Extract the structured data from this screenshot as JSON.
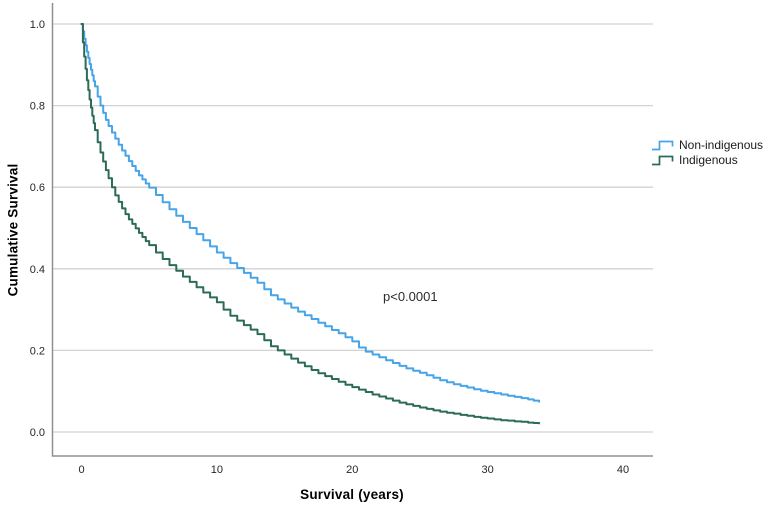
{
  "chart": {
    "y_axis_title": "Cumulative Survival",
    "x_axis_title": "Survival (years)",
    "annotation_text": "p<0.0001"
  },
  "chart_data": {
    "type": "line",
    "subtype": "kaplan-meier-step",
    "title": "",
    "xlabel": "Survival (years)",
    "ylabel": "Cumulative Survival",
    "xlim": [
      -2.2,
      42.2
    ],
    "ylim": [
      -0.06,
      1.05
    ],
    "x_ticks": [
      "0",
      "10",
      "20",
      "30",
      "40"
    ],
    "y_ticks": [
      "0.0",
      "0.2",
      "0.4",
      "0.6",
      "0.8",
      "1.0"
    ],
    "grid": "horizontal-only",
    "grid_color": "#d2d2d2",
    "spine_color": "#909090",
    "tick_label_color": "#262626",
    "legend_position": "right",
    "annotation": {
      "text": "p<0.0001",
      "x": 24.8,
      "y": 0.33
    },
    "series": [
      {
        "name": "Non-indigenous",
        "color": "#46a4e9",
        "points": [
          [
            0,
            1.0
          ],
          [
            0.1,
            0.982
          ],
          [
            0.2,
            0.964
          ],
          [
            0.3,
            0.948
          ],
          [
            0.4,
            0.932
          ],
          [
            0.5,
            0.917
          ],
          [
            0.6,
            0.902
          ],
          [
            0.7,
            0.888
          ],
          [
            0.8,
            0.874
          ],
          [
            0.9,
            0.86
          ],
          [
            1.0,
            0.847
          ],
          [
            1.2,
            0.822
          ],
          [
            1.4,
            0.8
          ],
          [
            1.6,
            0.782
          ],
          [
            1.8,
            0.765
          ],
          [
            2.0,
            0.75
          ],
          [
            2.25,
            0.734
          ],
          [
            2.5,
            0.719
          ],
          [
            2.75,
            0.704
          ],
          [
            3.0,
            0.69
          ],
          [
            3.25,
            0.677
          ],
          [
            3.5,
            0.664
          ],
          [
            3.75,
            0.652
          ],
          [
            4.0,
            0.64
          ],
          [
            4.25,
            0.629
          ],
          [
            4.5,
            0.619
          ],
          [
            4.75,
            0.609
          ],
          [
            5.0,
            0.599
          ],
          [
            5.5,
            0.581
          ],
          [
            6.0,
            0.563
          ],
          [
            6.5,
            0.546
          ],
          [
            7.0,
            0.53
          ],
          [
            7.5,
            0.515
          ],
          [
            8.0,
            0.5
          ],
          [
            8.5,
            0.485
          ],
          [
            9.0,
            0.47
          ],
          [
            9.5,
            0.455
          ],
          [
            10.0,
            0.44
          ],
          [
            10.5,
            0.427
          ],
          [
            11.0,
            0.414
          ],
          [
            11.5,
            0.402
          ],
          [
            12.0,
            0.39
          ],
          [
            12.5,
            0.378
          ],
          [
            13.0,
            0.366
          ],
          [
            13.5,
            0.35
          ],
          [
            14.0,
            0.335
          ],
          [
            14.5,
            0.325
          ],
          [
            15.0,
            0.315
          ],
          [
            15.5,
            0.305
          ],
          [
            16.0,
            0.295
          ],
          [
            16.5,
            0.286
          ],
          [
            17.0,
            0.277
          ],
          [
            17.5,
            0.268
          ],
          [
            18.0,
            0.259
          ],
          [
            18.5,
            0.25
          ],
          [
            19.0,
            0.242
          ],
          [
            19.5,
            0.232
          ],
          [
            20.0,
            0.222
          ],
          [
            20.5,
            0.207
          ],
          [
            21.0,
            0.197
          ],
          [
            21.5,
            0.19
          ],
          [
            22.0,
            0.183
          ],
          [
            22.5,
            0.176
          ],
          [
            23.0,
            0.169
          ],
          [
            23.5,
            0.162
          ],
          [
            24.0,
            0.156
          ],
          [
            24.5,
            0.15
          ],
          [
            25.0,
            0.145
          ],
          [
            25.5,
            0.139
          ],
          [
            26.0,
            0.133
          ],
          [
            26.5,
            0.127
          ],
          [
            27.0,
            0.122
          ],
          [
            27.5,
            0.117
          ],
          [
            28.0,
            0.113
          ],
          [
            28.5,
            0.109
          ],
          [
            29.0,
            0.105
          ],
          [
            29.5,
            0.101
          ],
          [
            30.0,
            0.098
          ],
          [
            30.5,
            0.095
          ],
          [
            31.0,
            0.092
          ],
          [
            31.5,
            0.089
          ],
          [
            32.0,
            0.086
          ],
          [
            32.5,
            0.083
          ],
          [
            33.0,
            0.08
          ],
          [
            33.4,
            0.077
          ],
          [
            33.8,
            0.074
          ]
        ]
      },
      {
        "name": "Indigenous",
        "color": "#2c6b5a",
        "points": [
          [
            0,
            1.0
          ],
          [
            0.1,
            0.955
          ],
          [
            0.2,
            0.92
          ],
          [
            0.3,
            0.89
          ],
          [
            0.4,
            0.862
          ],
          [
            0.5,
            0.838
          ],
          [
            0.6,
            0.815
          ],
          [
            0.7,
            0.795
          ],
          [
            0.8,
            0.775
          ],
          [
            0.9,
            0.757
          ],
          [
            1.0,
            0.74
          ],
          [
            1.2,
            0.71
          ],
          [
            1.4,
            0.685
          ],
          [
            1.6,
            0.663
          ],
          [
            1.8,
            0.642
          ],
          [
            2.0,
            0.622
          ],
          [
            2.25,
            0.6
          ],
          [
            2.5,
            0.58
          ],
          [
            2.75,
            0.564
          ],
          [
            3.0,
            0.548
          ],
          [
            3.25,
            0.534
          ],
          [
            3.5,
            0.521
          ],
          [
            3.75,
            0.51
          ],
          [
            4.0,
            0.499
          ],
          [
            4.25,
            0.488
          ],
          [
            4.5,
            0.478
          ],
          [
            4.75,
            0.468
          ],
          [
            5.0,
            0.458
          ],
          [
            5.5,
            0.44
          ],
          [
            6.0,
            0.424
          ],
          [
            6.5,
            0.409
          ],
          [
            7.0,
            0.395
          ],
          [
            7.5,
            0.381
          ],
          [
            8.0,
            0.368
          ],
          [
            8.5,
            0.355
          ],
          [
            9.0,
            0.342
          ],
          [
            9.5,
            0.33
          ],
          [
            10.0,
            0.318
          ],
          [
            10.5,
            0.3
          ],
          [
            11.0,
            0.285
          ],
          [
            11.5,
            0.273
          ],
          [
            12.0,
            0.262
          ],
          [
            12.5,
            0.251
          ],
          [
            13.0,
            0.24
          ],
          [
            13.5,
            0.225
          ],
          [
            14.0,
            0.21
          ],
          [
            14.5,
            0.2
          ],
          [
            15.0,
            0.19
          ],
          [
            15.5,
            0.18
          ],
          [
            16.0,
            0.17
          ],
          [
            16.5,
            0.161
          ],
          [
            17.0,
            0.152
          ],
          [
            17.5,
            0.144
          ],
          [
            18.0,
            0.137
          ],
          [
            18.5,
            0.13
          ],
          [
            19.0,
            0.123
          ],
          [
            19.5,
            0.116
          ],
          [
            20.0,
            0.11
          ],
          [
            20.5,
            0.104
          ],
          [
            21.0,
            0.098
          ],
          [
            21.5,
            0.092
          ],
          [
            22.0,
            0.087
          ],
          [
            22.5,
            0.082
          ],
          [
            23.0,
            0.077
          ],
          [
            23.5,
            0.072
          ],
          [
            24.0,
            0.068
          ],
          [
            24.5,
            0.064
          ],
          [
            25.0,
            0.06
          ],
          [
            25.5,
            0.0565
          ],
          [
            26.0,
            0.053
          ],
          [
            26.5,
            0.05
          ],
          [
            27.0,
            0.047
          ],
          [
            27.5,
            0.045
          ],
          [
            28.0,
            0.042
          ],
          [
            28.5,
            0.04
          ],
          [
            29.0,
            0.037
          ],
          [
            29.5,
            0.035
          ],
          [
            30.0,
            0.033
          ],
          [
            30.5,
            0.031
          ],
          [
            31.0,
            0.029
          ],
          [
            31.5,
            0.028
          ],
          [
            32.0,
            0.026
          ],
          [
            32.5,
            0.025
          ],
          [
            33.0,
            0.023
          ],
          [
            33.4,
            0.022
          ],
          [
            33.8,
            0.021
          ]
        ]
      }
    ]
  }
}
